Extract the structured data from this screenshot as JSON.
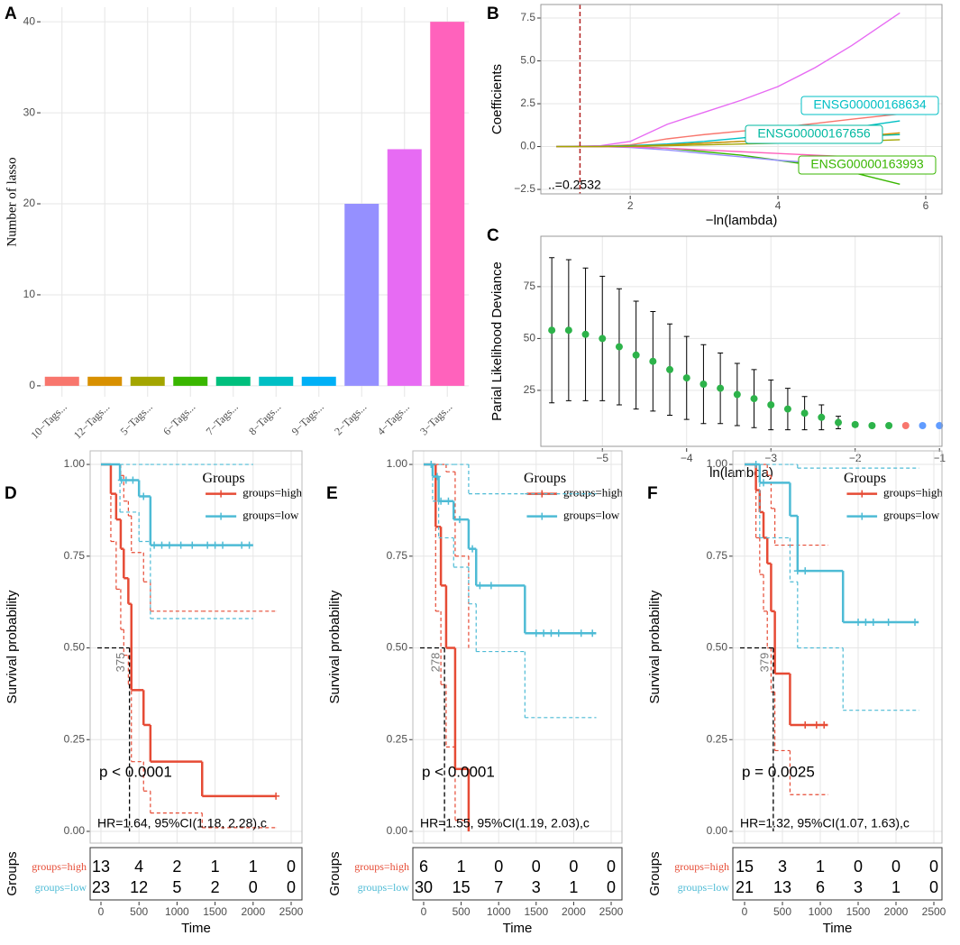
{
  "chart_data": [
    {
      "type": "bar",
      "panel": "A",
      "ylabel": "Number of lasso",
      "categories": [
        "10−Tags...",
        "12−Tags...",
        "5−Tags...",
        "6−Tags...",
        "7−Tags...",
        "8−Tags...",
        "9−Tags...",
        "2−Tags...",
        "4−Tags...",
        "3−Tags..."
      ],
      "values": [
        1,
        1,
        1,
        1,
        1,
        1,
        1,
        20,
        26,
        40
      ],
      "colors": [
        "#F8766D",
        "#D89000",
        "#A3A500",
        "#39B600",
        "#00BF7D",
        "#00BFC4",
        "#00B0F6",
        "#9590FF",
        "#E76BF3",
        "#FF62BC"
      ],
      "ylim": [
        -1.2,
        41.6
      ],
      "yticks": [
        0,
        10,
        20,
        30,
        40
      ],
      "grid": true
    },
    {
      "type": "line",
      "panel": "B",
      "xlabel": "−ln(lambda)",
      "ylabel": "Coefficients",
      "x": [
        1,
        1.6,
        2,
        2.5,
        3,
        3.5,
        4,
        4.5,
        5,
        5.65
      ],
      "series": [
        {
          "color": "#E76BF3",
          "values": [
            0,
            0.05,
            0.3,
            1.3,
            2,
            2.7,
            3.5,
            4.6,
            5.9,
            7.8
          ]
        },
        {
          "color": "#F8766D",
          "values": [
            0,
            0.02,
            0.1,
            0.45,
            0.7,
            0.9,
            1.1,
            1.35,
            1.6,
            1.9
          ]
        },
        {
          "name": "ENSG00000168634",
          "color": "#00BFC4",
          "values": [
            0,
            0.02,
            0.05,
            0.15,
            0.3,
            0.5,
            0.7,
            0.9,
            1.1,
            1.5
          ]
        },
        {
          "name": "ENSG00000167656",
          "color": "#00B8A0",
          "values": [
            0,
            0,
            0.05,
            0.1,
            0.2,
            0.3,
            0.4,
            0.5,
            0.6,
            0.7
          ]
        },
        {
          "name": "ENSG00000163993",
          "color": "#39B600",
          "values": [
            0,
            0,
            0,
            -0.1,
            -0.3,
            -0.5,
            -0.8,
            -1.1,
            -1.5,
            -2.2
          ]
        },
        {
          "color": "#9590FF",
          "values": [
            0,
            0,
            -0.05,
            -0.2,
            -0.4,
            -0.6,
            -0.8,
            -0.95,
            -1.05,
            -1.2
          ]
        },
        {
          "color": "#D89000",
          "values": [
            0,
            0,
            0.02,
            0.1,
            0.2,
            0.3,
            0.35,
            0.45,
            0.55,
            0.8
          ]
        },
        {
          "color": "#FF62BC",
          "values": [
            0,
            0,
            -0.02,
            -0.1,
            -0.2,
            -0.3,
            -0.4,
            -0.5,
            -0.6,
            -0.7
          ]
        },
        {
          "color": "#A3A500",
          "values": [
            0,
            0,
            0.01,
            0.05,
            0.1,
            0.15,
            0.2,
            0.25,
            0.3,
            0.4
          ]
        }
      ],
      "vline": 1.32,
      "annotation": "..=0.2532",
      "xlim": [
        0.79,
        6.22
      ],
      "xticks": [
        2,
        4,
        6
      ],
      "ylim": [
        -2.76,
        8.29
      ],
      "yticks": [
        {
          "value": -2.5,
          "label": "−2.5"
        },
        {
          "value": 0,
          "label": "0.0"
        },
        {
          "value": 2.5,
          "label": "2.5"
        },
        {
          "value": 5,
          "label": "5.0"
        },
        {
          "value": 7.5,
          "label": "7.5"
        }
      ],
      "grid": true
    },
    {
      "type": "errorbar",
      "panel": "C",
      "xlabel": "ln(lambda)",
      "ylabel": "Parial Likelihood Deviance",
      "x": [
        -5.6,
        -5.4,
        -5.2,
        -5.0,
        -4.8,
        -4.6,
        -4.4,
        -4.2,
        -4.0,
        -3.8,
        -3.6,
        -3.4,
        -3.2,
        -3.0,
        -2.8,
        -2.6,
        -2.4,
        -2.2,
        -2.0,
        -1.8,
        -1.6,
        -1.4,
        -1.2,
        -1.0
      ],
      "values": [
        54,
        54,
        52,
        50,
        46,
        42,
        39,
        35,
        31,
        28,
        26,
        23,
        21,
        18,
        16,
        14,
        12,
        9.5,
        8.5,
        8,
        8,
        8,
        8,
        8
      ],
      "errors": [
        35,
        34,
        32,
        30,
        28,
        26,
        24,
        22,
        20,
        19,
        17,
        15,
        14,
        12,
        10,
        8,
        6,
        3,
        1,
        0.5,
        0.3,
        0.3,
        0.3,
        0.3
      ],
      "colors": [
        "#2DB34A",
        "#2DB34A",
        "#2DB34A",
        "#2DB34A",
        "#2DB34A",
        "#2DB34A",
        "#2DB34A",
        "#2DB34A",
        "#2DB34A",
        "#2DB34A",
        "#2DB34A",
        "#2DB34A",
        "#2DB34A",
        "#2DB34A",
        "#2DB34A",
        "#2DB34A",
        "#2DB34A",
        "#2DB34A",
        "#2DB34A",
        "#2DB34A",
        "#2DB34A",
        "#F8766D",
        "#619CFF",
        "#619CFF"
      ],
      "xlim": [
        -5.73,
        -0.97
      ],
      "xticks": [
        {
          "value": -5,
          "label": "−5"
        },
        {
          "value": -4,
          "label": "−4"
        },
        {
          "value": -3,
          "label": "−3"
        },
        {
          "value": -2,
          "label": "−2"
        },
        {
          "value": -1,
          "label": "−1"
        }
      ],
      "ylim": [
        -2,
        99.3
      ],
      "yticks": [
        25,
        50,
        75
      ],
      "grid": true
    },
    {
      "type": "km",
      "panel": "D",
      "ylabel": "Survival probability",
      "xlabel": "Time",
      "legend_title": "Groups",
      "table_ylabel": "Groups",
      "pvalue": "p < 0.0001",
      "hr": "HR=1.64, 95%CI(1.18, 2.28),c",
      "median": 375,
      "series": [
        {
          "name": "groups=high",
          "color": "#E64B35",
          "times": [
            0,
            130,
            200,
            260,
            300,
            360,
            400,
            560,
            650,
            1330,
            2300
          ],
          "values": [
            1,
            0.92,
            0.85,
            0.77,
            0.69,
            0.62,
            0.385,
            0.29,
            0.19,
            0.096,
            0.096
          ],
          "upper": [
            1,
            1,
            1,
            0.97,
            0.9,
            0.86,
            0.76,
            0.68,
            0.6,
            0.6,
            0.6
          ],
          "lower": [
            1,
            0.79,
            0.66,
            0.55,
            0.48,
            0.4,
            0.19,
            0.11,
            0.05,
            0.01,
            0.01
          ],
          "censor": [
            2300
          ],
          "at_risk": [
            13,
            4,
            2,
            1,
            1,
            0
          ]
        },
        {
          "name": "groups=low",
          "color": "#4DBBD5",
          "times": [
            0,
            250,
            500,
            650,
            2000
          ],
          "values": [
            1,
            0.957,
            0.913,
            0.78,
            0.78
          ],
          "upper": [
            1,
            1,
            1,
            1,
            1
          ],
          "lower": [
            1,
            0.87,
            0.79,
            0.58,
            0.58
          ],
          "censor": [
            270,
            330,
            420,
            560,
            700,
            800,
            900,
            1050,
            1200,
            1400,
            1500,
            1600,
            1850,
            1950
          ],
          "at_risk": [
            23,
            12,
            5,
            2,
            0,
            0
          ]
        }
      ],
      "xlim": [
        -142,
        2642
      ],
      "xticks": [
        0,
        500,
        1000,
        1500,
        2000,
        2500
      ],
      "ylim": [
        -0.032,
        1.037
      ],
      "yticks": [
        {
          "value": 0,
          "label": "0.00"
        },
        {
          "value": 0.25,
          "label": "0.25"
        },
        {
          "value": 0.5,
          "label": "0.50"
        },
        {
          "value": 0.75,
          "label": "0.75"
        },
        {
          "value": 1,
          "label": "1.00"
        }
      ],
      "grid": true
    },
    {
      "type": "km",
      "panel": "E",
      "ylabel": "Survival probability",
      "xlabel": "Time",
      "legend_title": "Groups",
      "table_ylabel": "Groups",
      "pvalue": "p < 0.0001",
      "hr": "HR=1.55, 95%CI(1.19, 2.03),c",
      "median": 278,
      "series": [
        {
          "name": "groups=high",
          "color": "#E64B35",
          "times": [
            0,
            160,
            230,
            300,
            420,
            600
          ],
          "values": [
            1,
            0.83,
            0.67,
            0.5,
            0.17,
            0
          ],
          "upper": [
            1,
            1,
            1,
            0.98,
            0.75,
            0.5
          ],
          "lower": [
            1,
            0.6,
            0.4,
            0.23,
            0.03,
            0
          ],
          "censor": [],
          "at_risk": [
            6,
            1,
            0,
            0,
            0,
            0
          ]
        },
        {
          "name": "groups=low",
          "color": "#4DBBD5",
          "times": [
            0,
            120,
            200,
            400,
            600,
            700,
            1350,
            2300
          ],
          "values": [
            1,
            0.967,
            0.9,
            0.85,
            0.77,
            0.67,
            0.54,
            0.54
          ],
          "upper": [
            1,
            1,
            1,
            1,
            0.92,
            0.92,
            0.92,
            0.92
          ],
          "lower": [
            1,
            0.9,
            0.8,
            0.72,
            0.62,
            0.49,
            0.31,
            0.31
          ],
          "censor": [
            100,
            180,
            230,
            330,
            480,
            650,
            750,
            900,
            1500,
            1600,
            1700,
            1800,
            2100,
            2250
          ],
          "at_risk": [
            30,
            15,
            7,
            3,
            1,
            0
          ]
        }
      ],
      "xlim": [
        -144,
        2644
      ],
      "xticks": [
        0,
        500,
        1000,
        1500,
        2000,
        2500
      ],
      "ylim": [
        -0.032,
        1.037
      ],
      "yticks": [
        {
          "value": 0,
          "label": "0.00"
        },
        {
          "value": 0.25,
          "label": "0.25"
        },
        {
          "value": 0.5,
          "label": "0.50"
        },
        {
          "value": 0.75,
          "label": "0.75"
        },
        {
          "value": 1,
          "label": "1.00"
        }
      ],
      "grid": true
    },
    {
      "type": "km",
      "panel": "F",
      "ylabel": "Survival probability",
      "xlabel": "Time",
      "legend_title": "Groups",
      "table_ylabel": "Groups",
      "pvalue": "p = 0.0025",
      "hr": "HR=1.32, 95%CI(1.07, 1.63),c",
      "median": 379,
      "series": [
        {
          "name": "groups=high",
          "color": "#E64B35",
          "times": [
            0,
            150,
            200,
            250,
            300,
            350,
            400,
            600,
            1100
          ],
          "values": [
            1,
            0.93,
            0.87,
            0.8,
            0.73,
            0.6,
            0.43,
            0.29,
            0.29
          ],
          "upper": [
            1,
            1,
            1,
            1,
            0.97,
            0.88,
            0.78,
            0.78,
            0.78
          ],
          "lower": [
            1,
            0.8,
            0.7,
            0.6,
            0.5,
            0.38,
            0.22,
            0.1,
            0.1
          ],
          "censor": [
            800,
            950,
            1050
          ],
          "at_risk": [
            15,
            3,
            1,
            0,
            0,
            0
          ]
        },
        {
          "name": "groups=low",
          "color": "#4DBBD5",
          "times": [
            0,
            200,
            600,
            700,
            1300,
            2300
          ],
          "values": [
            1,
            0.95,
            0.86,
            0.71,
            0.57,
            0.57
          ],
          "upper": [
            1,
            1,
            1,
            0.99,
            0.99,
            0.99
          ],
          "lower": [
            1,
            0.8,
            0.68,
            0.5,
            0.33,
            0.33
          ],
          "censor": [
            150,
            250,
            700,
            800,
            1500,
            1600,
            1700,
            1900,
            2250
          ],
          "at_risk": [
            21,
            13,
            6,
            3,
            1,
            0
          ]
        }
      ],
      "xlim": [
        -155,
        2607
      ],
      "xticks": [
        0,
        500,
        1000,
        1500,
        2000,
        2500
      ],
      "ylim": [
        -0.032,
        1.037
      ],
      "yticks": [
        {
          "value": 0,
          "label": "0.00"
        },
        {
          "value": 0.25,
          "label": "0.25"
        },
        {
          "value": 0.5,
          "label": "0.50"
        },
        {
          "value": 0.75,
          "label": "0.75"
        },
        {
          "value": 1,
          "label": "1.00"
        }
      ],
      "grid": true
    }
  ]
}
